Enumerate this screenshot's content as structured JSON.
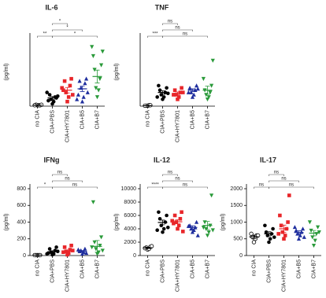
{
  "chart_data": [
    {
      "type": "strip",
      "title": "IL-6",
      "y_label": "(pg/ml)",
      "categories": [
        "no CIA",
        "CIA+PBS",
        "CIA+HY7801",
        "CIA+B5",
        "CIA+B7"
      ],
      "colors": [
        "#000000",
        "#000000",
        "#e8262a",
        "#1f2e9e",
        "#2a9a3a"
      ],
      "markers": [
        "open-circle",
        "circle",
        "square",
        "triangle-up",
        "triangle-down"
      ],
      "values": [
        [
          2,
          2,
          3,
          2,
          2,
          3
        ],
        [
          5,
          10,
          15,
          20,
          25,
          18,
          12,
          22,
          30
        ],
        [
          10,
          20,
          30,
          45,
          55,
          60,
          35,
          25,
          40
        ],
        [
          10,
          20,
          40,
          50,
          55,
          60,
          25,
          30,
          15
        ],
        [
          20,
          35,
          40,
          60,
          80,
          90,
          110,
          120,
          130
        ]
      ],
      "means": [
        2,
        18,
        35,
        38,
        65
      ],
      "errors": [
        0.5,
        3,
        6,
        6,
        14
      ],
      "ylim": [
        0,
        150
      ],
      "comparisons": [
        {
          "between": [
            "no CIA",
            "CIA+PBS"
          ],
          "label": "**"
        },
        {
          "between": [
            "CIA+PBS",
            "CIA+HY7801"
          ],
          "label": "*"
        },
        {
          "between": [
            "CIA+PBS",
            "CIA+B5"
          ],
          "label": "*"
        },
        {
          "between": [
            "CIA+PBS",
            "CIA+B7"
          ],
          "label": "*"
        }
      ]
    },
    {
      "type": "strip",
      "title": "TNF",
      "y_label": "(pg/ml)",
      "categories": [
        "no CIA",
        "CIA+PBS",
        "CIA+HY7801",
        "CIA+B5",
        "CIA+B7"
      ],
      "colors": [
        "#000000",
        "#000000",
        "#e8262a",
        "#1f2e9e",
        "#2a9a3a"
      ],
      "markers": [
        "open-circle",
        "circle",
        "square",
        "triangle-up",
        "triangle-down"
      ],
      "values": [
        [
          1,
          2,
          1,
          2,
          1
        ],
        [
          15,
          20,
          25,
          30,
          35,
          40,
          45,
          28,
          20
        ],
        [
          15,
          20,
          25,
          30,
          35,
          40,
          25,
          30
        ],
        [
          20,
          25,
          30,
          35,
          40,
          45,
          30,
          38
        ],
        [
          15,
          20,
          25,
          30,
          35,
          45,
          60,
          100
        ]
      ],
      "means": [
        1,
        30,
        28,
        35,
        35
      ],
      "errors": [
        0.3,
        4,
        3,
        3,
        9
      ],
      "ylim": [
        0,
        150
      ],
      "comparisons": [
        {
          "between": [
            "no CIA",
            "CIA+PBS"
          ],
          "label": "***"
        },
        {
          "between": [
            "CIA+PBS",
            "CIA+HY7801"
          ],
          "label": "ns"
        },
        {
          "between": [
            "CIA+PBS",
            "CIA+B5"
          ],
          "label": "ns"
        },
        {
          "between": [
            "CIA+PBS",
            "CIA+B7"
          ],
          "label": "ns"
        }
      ]
    },
    {
      "type": "strip",
      "title": "IFNg",
      "y_label": "(pg/ml)",
      "categories": [
        "no CIA",
        "CIA+PBS",
        "CIA+HY7801",
        "CIA+B5",
        "CIA+B7"
      ],
      "colors": [
        "#000000",
        "#000000",
        "#e8262a",
        "#1f2e9e",
        "#2a9a3a"
      ],
      "markers": [
        "open-circle",
        "circle",
        "square",
        "triangle-up",
        "triangle-down"
      ],
      "values": [
        [
          5,
          5,
          5,
          5,
          5
        ],
        [
          10,
          20,
          40,
          60,
          80,
          100,
          30,
          50,
          20
        ],
        [
          10,
          30,
          50,
          70,
          100,
          120,
          40,
          60
        ],
        [
          20,
          40,
          60,
          80,
          50,
          30,
          70
        ],
        [
          20,
          40,
          80,
          120,
          160,
          220,
          640,
          60,
          100
        ]
      ],
      "means": [
        5,
        45,
        55,
        50,
        110
      ],
      "errors": [
        2,
        12,
        12,
        10,
        70
      ],
      "ylim": [
        0,
        800
      ],
      "yticks": [
        0,
        200,
        400,
        600,
        800
      ],
      "comparisons": [
        {
          "between": [
            "no CIA",
            "CIA+PBS"
          ],
          "label": "*"
        },
        {
          "between": [
            "CIA+PBS",
            "CIA+HY7801"
          ],
          "label": "ns"
        },
        {
          "between": [
            "CIA+PBS",
            "CIA+B5"
          ],
          "label": "ns"
        },
        {
          "between": [
            "CIA+PBS",
            "CIA+B7"
          ],
          "label": "ns"
        }
      ]
    },
    {
      "type": "strip",
      "title": "IL-12",
      "y_label": "(pg/ml)",
      "categories": [
        "no CIA",
        "CIA+PBS",
        "CIA+HY7801",
        "CIA+B5",
        "CIA+B7"
      ],
      "colors": [
        "#000000",
        "#000000",
        "#e8262a",
        "#1f2e9e",
        "#2a9a3a"
      ],
      "markers": [
        "open-circle",
        "circle",
        "square",
        "triangle-up",
        "triangle-down"
      ],
      "values": [
        [
          900,
          1000,
          1200,
          1300,
          1100,
          1400
        ],
        [
          3500,
          4000,
          4500,
          5000,
          5500,
          6000,
          6500,
          4200,
          3800
        ],
        [
          4000,
          4500,
          5000,
          5500,
          6000,
          6500,
          4800,
          3600,
          5200
        ],
        [
          3500,
          3800,
          4000,
          4200,
          4500,
          5000,
          4400,
          3000
        ],
        [
          3000,
          3500,
          4000,
          4500,
          5000,
          9000,
          4200,
          3800
        ]
      ],
      "means": [
        1150,
        4950,
        5050,
        4200,
        4500
      ],
      "errors": [
        100,
        350,
        300,
        250,
        600
      ],
      "ylim": [
        0,
        10000
      ],
      "yticks": [
        0,
        2000,
        4000,
        6000,
        8000,
        10000
      ],
      "comparisons": [
        {
          "between": [
            "no CIA",
            "CIA+PBS"
          ],
          "label": "****"
        },
        {
          "between": [
            "CIA+PBS",
            "CIA+HY7801"
          ],
          "label": "ns"
        },
        {
          "between": [
            "CIA+PBS",
            "CIA+B5"
          ],
          "label": "ns"
        },
        {
          "between": [
            "CIA+PBS",
            "CIA+B7"
          ],
          "label": "ns"
        }
      ]
    },
    {
      "type": "strip",
      "title": "IL-17",
      "y_label": "(pg/ml)",
      "categories": [
        "no CIA",
        "CIA+PBS",
        "CIA+HY7801",
        "CIA+B5",
        "CIA+B7"
      ],
      "colors": [
        "#000000",
        "#000000",
        "#e8262a",
        "#1f2e9e",
        "#2a9a3a"
      ],
      "markers": [
        "open-circle",
        "circle",
        "square",
        "triangle-up",
        "triangle-down"
      ],
      "values": [
        [
          400,
          500,
          550,
          600,
          650,
          600
        ],
        [
          400,
          500,
          600,
          650,
          700,
          800,
          900,
          550
        ],
        [
          500,
          600,
          700,
          800,
          900,
          1000,
          1200,
          1800,
          650
        ],
        [
          500,
          600,
          650,
          700,
          750,
          800,
          850,
          550
        ],
        [
          300,
          450,
          550,
          650,
          750,
          850,
          1000,
          700
        ]
      ],
      "means": [
        560,
        650,
        800,
        690,
        670
      ],
      "errors": [
        50,
        60,
        110,
        50,
        80
      ],
      "ylim": [
        0,
        2000
      ],
      "yticks": [
        0,
        500,
        1000,
        1500,
        2000
      ],
      "comparisons": [
        {
          "between": [
            "no CIA",
            "CIA+PBS"
          ],
          "label": "ns"
        },
        {
          "between": [
            "CIA+PBS",
            "CIA+HY7801"
          ],
          "label": "ns"
        },
        {
          "between": [
            "CIA+PBS",
            "CIA+B5"
          ],
          "label": "ns"
        },
        {
          "between": [
            "CIA+PBS",
            "CIA+B7"
          ],
          "label": "ns"
        }
      ]
    }
  ]
}
